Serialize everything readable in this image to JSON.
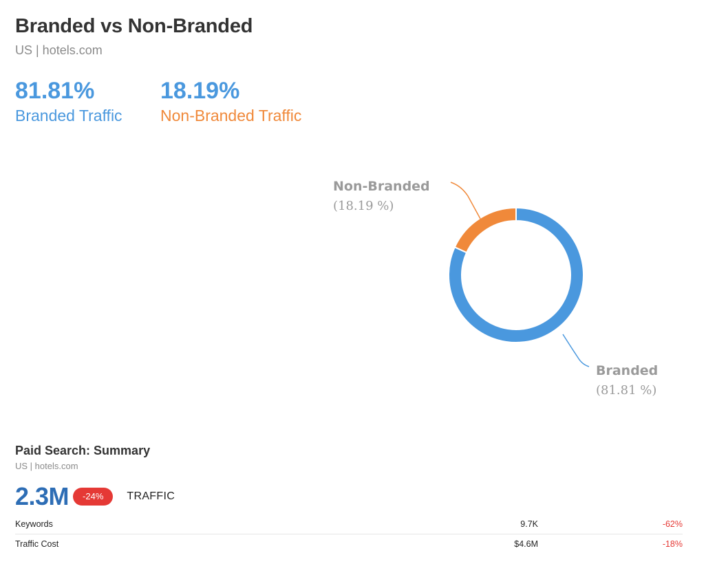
{
  "header": {
    "title": "Branded vs Non-Branded",
    "subtitle": "US | hotels.com"
  },
  "metrics": {
    "branded": {
      "value": "81.81%",
      "label": "Branded Traffic"
    },
    "non_branded": {
      "value": "18.19%",
      "label": "Non-Branded Traffic"
    }
  },
  "colors": {
    "branded": "#4a98de",
    "non_branded": "#f0893a",
    "negative": "#e53935",
    "primary_number": "#2d6db5"
  },
  "chart_data": {
    "type": "pie",
    "style": "donut",
    "categories": [
      "Branded",
      "Non-Branded"
    ],
    "values": [
      81.81,
      18.19
    ],
    "labels": {
      "branded": {
        "name": "Branded",
        "value": "(81.81 %)"
      },
      "non_branded": {
        "name": "Non-Branded",
        "value": "(18.19 %)"
      }
    }
  },
  "paid_search": {
    "title": "Paid Search: Summary",
    "subtitle": "US | hotels.com",
    "traffic_value": "2.3M",
    "traffic_change": "-24%",
    "traffic_label": "TRAFFIC",
    "rows": [
      {
        "name": "Keywords",
        "value": "9.7K",
        "change": "-62%"
      },
      {
        "name": "Traffic Cost",
        "value": "$4.6M",
        "change": "-18%"
      }
    ]
  }
}
